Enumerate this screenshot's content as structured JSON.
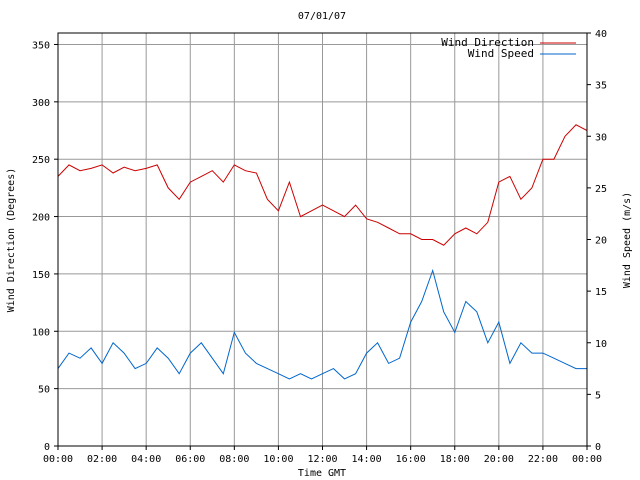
{
  "chart_data": {
    "type": "line",
    "title": "07/01/07",
    "xlabel": "Time GMT",
    "ylabel_left": "Wind Direction (Degrees)",
    "ylabel_right": "Wind Speed (m/s)",
    "x_ticks": [
      "00:00",
      "02:00",
      "04:00",
      "06:00",
      "08:00",
      "10:00",
      "12:00",
      "14:00",
      "16:00",
      "18:00",
      "20:00",
      "22:00",
      "00:00"
    ],
    "x_range_hours": [
      0,
      24
    ],
    "y_left_ticks": [
      "0",
      "50",
      "100",
      "150",
      "200",
      "250",
      "300",
      "350"
    ],
    "y_left_range": [
      0,
      360
    ],
    "y_right_ticks": [
      "0",
      "5",
      "10",
      "15",
      "20",
      "25",
      "30",
      "35",
      "40"
    ],
    "y_right_range": [
      0,
      40
    ],
    "grid": true,
    "legend_position": "top-right",
    "series": [
      {
        "name": "Wind Direction",
        "axis": "left",
        "color": "#cc0000",
        "x": [
          0,
          0.5,
          1,
          1.5,
          2,
          2.5,
          3,
          3.5,
          4,
          4.5,
          5,
          5.5,
          6,
          6.5,
          7,
          7.5,
          8,
          8.5,
          9,
          9.5,
          10,
          10.5,
          11,
          11.5,
          12,
          12.5,
          13,
          13.5,
          14,
          14.5,
          15,
          15.5,
          16,
          16.5,
          17,
          17.5,
          18,
          18.5,
          19,
          19.5,
          20,
          20.5,
          21,
          21.5,
          22,
          22.5,
          23,
          23.5,
          24
        ],
        "values": [
          235,
          245,
          240,
          242,
          245,
          238,
          243,
          240,
          242,
          245,
          225,
          215,
          230,
          235,
          240,
          230,
          245,
          240,
          238,
          215,
          205,
          230,
          200,
          205,
          210,
          205,
          200,
          210,
          198,
          195,
          190,
          185,
          185,
          180,
          180,
          175,
          185,
          190,
          185,
          195,
          230,
          235,
          215,
          225,
          250,
          250,
          270,
          280,
          275
        ]
      },
      {
        "name": "Wind Speed",
        "axis": "right",
        "color": "#0066cc",
        "x": [
          0,
          0.5,
          1,
          1.5,
          2,
          2.5,
          3,
          3.5,
          4,
          4.5,
          5,
          5.5,
          6,
          6.5,
          7,
          7.5,
          8,
          8.5,
          9,
          9.5,
          10,
          10.5,
          11,
          11.5,
          12,
          12.5,
          13,
          13.5,
          14,
          14.5,
          15,
          15.5,
          16,
          16.5,
          17,
          17.5,
          18,
          18.5,
          19,
          19.5,
          20,
          20.5,
          21,
          21.5,
          22,
          22.5,
          23,
          23.5,
          24
        ],
        "values": [
          7.5,
          9,
          8.5,
          9.5,
          8,
          10,
          9,
          7.5,
          8,
          9.5,
          8.5,
          7,
          9,
          10,
          8.5,
          7,
          11,
          9,
          8,
          7.5,
          7,
          6.5,
          7,
          6.5,
          7,
          7.5,
          6.5,
          7,
          9,
          10,
          8,
          8.5,
          12,
          14,
          17,
          13,
          11,
          14,
          13,
          10,
          12,
          8,
          10,
          9,
          9,
          8.5,
          8,
          7.5,
          7.5
        ]
      }
    ]
  }
}
